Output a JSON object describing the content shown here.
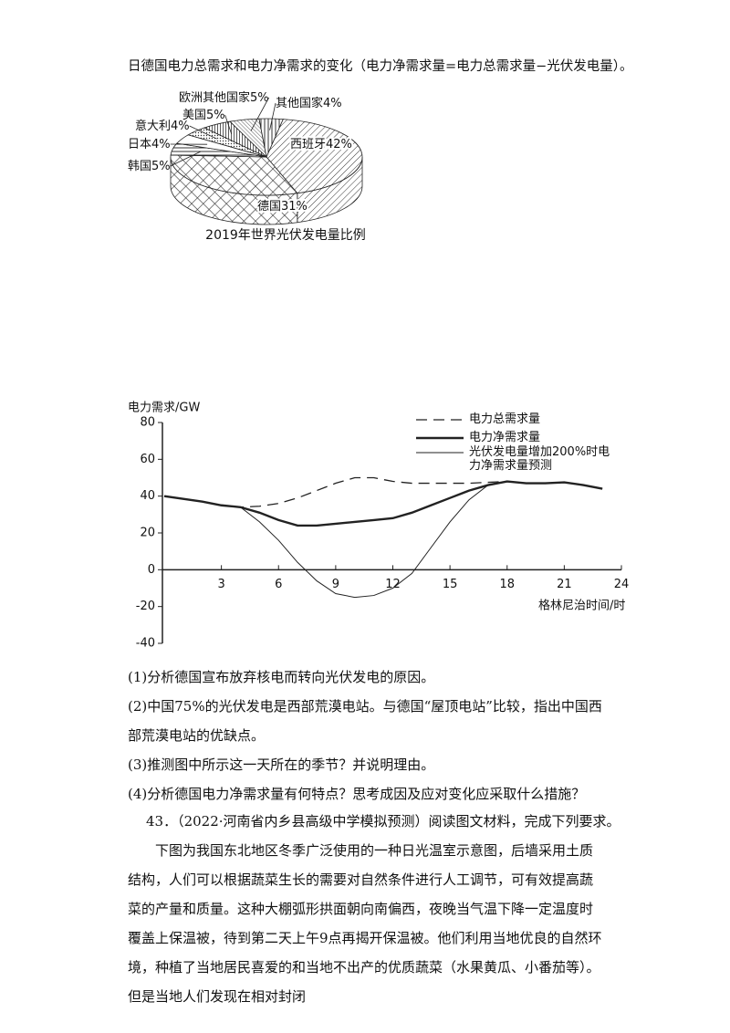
{
  "intro": "日德国电力总需求和电力净需求的变化（电力净需求量=电力总需求量−光伏发电量）。",
  "chart_data": [
    {
      "type": "pie",
      "title": "2019年世界光伏发电量比例",
      "categories": [
        "西班牙",
        "德国",
        "韩国",
        "日本",
        "意大利",
        "美国",
        "欧洲其他国家",
        "其他国家"
      ],
      "values": [
        42,
        31,
        5,
        4,
        4,
        5,
        5,
        4
      ],
      "value_labels": [
        "42%",
        "31%",
        "5%",
        "4%",
        "4%",
        "5%",
        "5%",
        "4%"
      ]
    },
    {
      "type": "line",
      "y_label": "电力需求/GW",
      "x_label": "格林尼治时间/时",
      "x": [
        0,
        1,
        2,
        3,
        4,
        5,
        6,
        7,
        8,
        9,
        10,
        11,
        12,
        13,
        14,
        15,
        16,
        17,
        18,
        19,
        20,
        21,
        22,
        23
      ],
      "xlim": [
        0,
        24
      ],
      "xticks": [
        3,
        6,
        9,
        12,
        15,
        18,
        21,
        24
      ],
      "ylim": [
        -40,
        80
      ],
      "yticks": [
        -40,
        -20,
        0,
        20,
        40,
        60,
        80
      ],
      "series": [
        {
          "name": "电力总需求量",
          "color": "#222",
          "style": "dashed",
          "values": [
            40,
            38.5,
            37,
            35,
            34,
            34.5,
            36,
            39,
            43,
            47,
            50,
            50,
            48,
            47,
            47,
            47,
            47,
            47.5,
            48,
            47,
            47,
            47.5,
            46,
            44
          ]
        },
        {
          "name": "电力净需求量",
          "color": "#222",
          "style": "thick",
          "values": [
            40,
            38.5,
            37,
            35,
            34,
            31,
            27,
            24,
            24,
            25,
            26,
            27,
            28,
            31,
            35,
            39,
            43,
            46,
            48,
            47,
            47,
            47.5,
            46,
            44
          ]
        },
        {
          "name": "光伏发电量增加200%时电力净需求量预测",
          "color": "#222",
          "style": "thin",
          "values": [
            40,
            38.5,
            37,
            35,
            34,
            26,
            16,
            4,
            -6,
            -13,
            -15,
            -14,
            -10,
            -2,
            12,
            26,
            38,
            46,
            48,
            47,
            47,
            47.5,
            46,
            44
          ]
        }
      ]
    }
  ],
  "questions": [
    "(1)分析德国宣布放弃核电而转向光伏发电的原因。",
    "(2)中国75%的光伏发电是西部荒漠电站。与德国“屋顶电站”比较，指出中国西部荒漠电站的优缺点。",
    "(3)推测图中所示这一天所在的季节？并说明理由。",
    "(4)分析德国电力净需求量有何特点？思考成因及应对变化应采取什么措施？"
  ],
  "question_43": "43．（2022·河南省内乡县高级中学模拟预测）阅读图文材料，完成下列要求。",
  "paragraph": "下图为我国东北地区冬季广泛使用的一种日光温室示意图，后墙采用土质结构，人们可以根据蔬菜生长的需要对自然条件进行人工调节，可有效提高蔬菜的产量和质量。这种大棚弧形拱面朝向南偏西，夜晚当气温下降一定温度时覆盖上保温被，待到第二天上午9点再揭开保温被。他们利用当地优良的自然环境，种植了当地居民喜爱的和当地不出产的优质蔬菜（水果黄瓜、小番茄等）。但是当地人们发现在相对封闭"
}
